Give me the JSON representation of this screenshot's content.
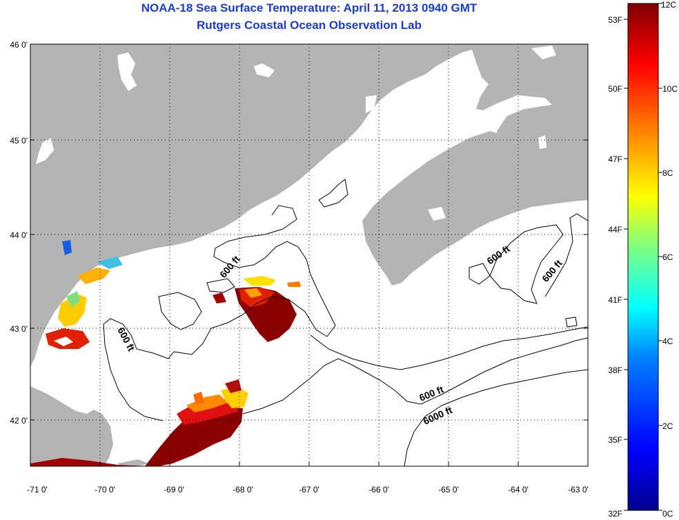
{
  "title": "NOAA-18 Sea Surface Temperature:  April 11, 2013 0940 GMT",
  "subtitle": "Rutgers Coastal Ocean Observation Lab",
  "map": {
    "lat_ticks": [
      "46 0'",
      "45 0'",
      "44 0'",
      "43 0'",
      "42 0'"
    ],
    "lon_ticks": [
      "-71 0'",
      "-70 0'",
      "-69 0'",
      "-68 0'",
      "-67 0'",
      "-66 0'",
      "-65 0'",
      "-64 0'",
      "-63 0'"
    ],
    "contour_labels": [
      "600 ft",
      "600 ft",
      "600 ft",
      "600 ft",
      "600 ft",
      "6000 ft"
    ],
    "land_color": "#b4b4b4",
    "ocean_color": "#ffffff"
  },
  "colorbar": {
    "fahrenheit_labels": [
      "53F",
      "50F",
      "47F",
      "44F",
      "41F",
      "38F",
      "35F",
      "32F"
    ],
    "celsius_labels": [
      "12C",
      "10C",
      "8C",
      "6C",
      "4C",
      "2C",
      "0C"
    ],
    "gradient_colors": [
      "#800000",
      "#ff0000",
      "#ff8000",
      "#ffff00",
      "#80ff80",
      "#00ffff",
      "#0080ff",
      "#0000ff",
      "#00008f"
    ]
  }
}
